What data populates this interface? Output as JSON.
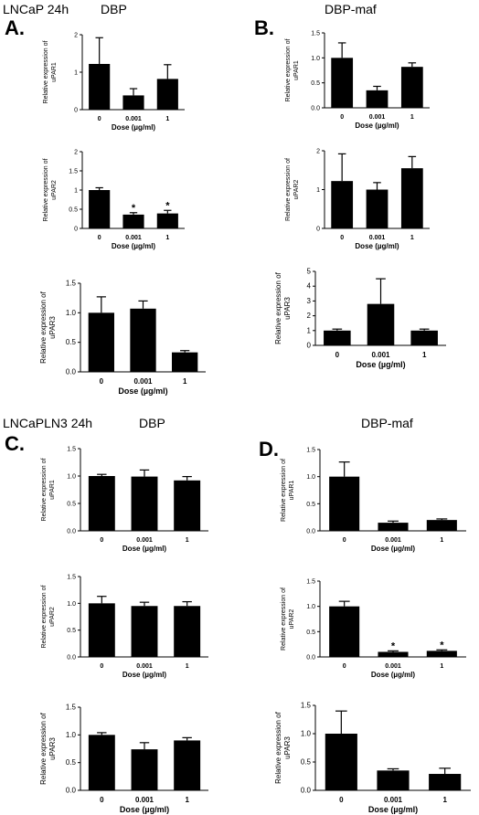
{
  "headers": {
    "top_left_cell": "LNCaP 24h",
    "top_left_treatment": "DBP",
    "top_right_treatment": "DBP-maf",
    "bottom_left_cell": "LNCaPLN3 24h",
    "bottom_left_treatment": "DBP",
    "bottom_right_treatment": "DBP-maf"
  },
  "panel_labels": {
    "a": "A.",
    "b": "B.",
    "c": "C.",
    "d": "D."
  },
  "chart_data": [
    {
      "type": "bar",
      "panel": "A",
      "categories": [
        "0",
        "0.001",
        "1"
      ],
      "values": [
        1.22,
        0.38,
        0.82
      ],
      "errors": [
        0.7,
        0.18,
        0.38
      ],
      "ylim": [
        0,
        2
      ],
      "yticks": [
        "0",
        "1",
        "2"
      ],
      "ylabel": [
        "Relative expression of",
        "uPAR1"
      ],
      "xlabel": "Dose (µg/ml)",
      "significance": [
        "",
        "",
        ""
      ]
    },
    {
      "type": "bar",
      "panel": "A",
      "categories": [
        "0",
        "0.001",
        "1"
      ],
      "values": [
        1.0,
        0.36,
        0.39
      ],
      "errors": [
        0.06,
        0.05,
        0.08
      ],
      "ylim": [
        0,
        2
      ],
      "yticks": [
        "0",
        "0.5",
        "1",
        "1.5",
        "2"
      ],
      "ylabel": [
        "Relative expression of",
        "uPAR2"
      ],
      "xlabel": "Dose (µg/ml)",
      "significance": [
        "",
        "*",
        "*"
      ]
    },
    {
      "type": "bar",
      "panel": "A",
      "categories": [
        "0",
        "0.001",
        "1"
      ],
      "values": [
        1.0,
        1.07,
        0.33
      ],
      "errors": [
        0.27,
        0.13,
        0.03
      ],
      "ylim": [
        0,
        1.5
      ],
      "yticks": [
        "0.0",
        "0.5",
        "1.0",
        "1.5"
      ],
      "ylabel": [
        "Relative expression of",
        "uPAR3"
      ],
      "xlabel": "Dose (µg/ml)",
      "significance": [
        "",
        "",
        ""
      ]
    },
    {
      "type": "bar",
      "panel": "B",
      "categories": [
        "0",
        "0.001",
        "1"
      ],
      "values": [
        1.0,
        0.35,
        0.82
      ],
      "errors": [
        0.3,
        0.08,
        0.08
      ],
      "ylim": [
        0,
        1.5
      ],
      "yticks": [
        "0.0",
        "0.5",
        "1.0",
        "1.5"
      ],
      "ylabel": [
        "Relative expression of",
        "uPAR1"
      ],
      "xlabel": "Dose (µg/ml)",
      "significance": [
        "",
        "",
        ""
      ]
    },
    {
      "type": "bar",
      "panel": "B",
      "categories": [
        "0",
        "0.001",
        "1"
      ],
      "values": [
        1.22,
        1.0,
        1.55
      ],
      "errors": [
        0.7,
        0.18,
        0.3
      ],
      "ylim": [
        0,
        2
      ],
      "yticks": [
        "0",
        "1",
        "2"
      ],
      "ylabel": [
        "Relative expression of",
        "uPAR2"
      ],
      "xlabel": "Dose (µg/ml)",
      "significance": [
        "",
        "",
        ""
      ]
    },
    {
      "type": "bar",
      "panel": "B",
      "categories": [
        "0",
        "0.001",
        "1"
      ],
      "values": [
        1.0,
        2.8,
        1.0
      ],
      "errors": [
        0.1,
        1.7,
        0.1
      ],
      "ylim": [
        0,
        5
      ],
      "yticks": [
        "0",
        "1",
        "2",
        "3",
        "4",
        "5"
      ],
      "ylabel": [
        "Relative expression of",
        "uPAR3"
      ],
      "xlabel": "Dose (µg/ml)",
      "significance": [
        "",
        "",
        ""
      ]
    },
    {
      "type": "bar",
      "panel": "C",
      "categories": [
        "0",
        "0.001",
        "1"
      ],
      "values": [
        1.0,
        0.99,
        0.92
      ],
      "errors": [
        0.03,
        0.12,
        0.07
      ],
      "ylim": [
        0,
        1.5
      ],
      "yticks": [
        "0.0",
        "0.5",
        "1.0",
        "1.5"
      ],
      "ylabel": [
        "Relative expression of",
        "uPAR1"
      ],
      "xlabel": "Dose (µg/ml)",
      "significance": [
        "",
        "",
        ""
      ]
    },
    {
      "type": "bar",
      "panel": "C",
      "categories": [
        "0",
        "0.001",
        "1"
      ],
      "values": [
        1.0,
        0.95,
        0.95
      ],
      "errors": [
        0.13,
        0.07,
        0.08
      ],
      "ylim": [
        0,
        1.5
      ],
      "yticks": [
        "0.0",
        "0.5",
        "1.0",
        "1.5"
      ],
      "ylabel": [
        "Relative expression of",
        "uPAR2"
      ],
      "xlabel": "Dose (µg/ml)",
      "significance": [
        "",
        "",
        ""
      ]
    },
    {
      "type": "bar",
      "panel": "C",
      "categories": [
        "0",
        "0.001",
        "1"
      ],
      "values": [
        1.0,
        0.74,
        0.9
      ],
      "errors": [
        0.04,
        0.12,
        0.05
      ],
      "ylim": [
        0,
        1.5
      ],
      "yticks": [
        "0.0",
        "0.5",
        "1.0",
        "1.5"
      ],
      "ylabel": [
        "Relative expression of",
        "uPAR3"
      ],
      "xlabel": "Dose (µg/ml)",
      "significance": [
        "",
        "",
        ""
      ]
    },
    {
      "type": "bar",
      "panel": "D",
      "categories": [
        "0",
        "0.001",
        "1"
      ],
      "values": [
        1.0,
        0.15,
        0.2
      ],
      "errors": [
        0.27,
        0.03,
        0.02
      ],
      "ylim": [
        0,
        1.5
      ],
      "yticks": [
        "0.0",
        "0.5",
        "1.0",
        "1.5"
      ],
      "ylabel": [
        "Relative expression of",
        "uPAR1"
      ],
      "xlabel": "Dose (µg/ml)",
      "significance": [
        "",
        "",
        ""
      ]
    },
    {
      "type": "bar",
      "panel": "D",
      "categories": [
        "0",
        "0.001",
        "1"
      ],
      "values": [
        1.0,
        0.1,
        0.12
      ],
      "errors": [
        0.1,
        0.02,
        0.02
      ],
      "ylim": [
        0,
        1.5
      ],
      "yticks": [
        "0.0",
        "0.5",
        "1.0",
        "1.5"
      ],
      "ylabel": [
        "Relative expression of",
        "uPAR2"
      ],
      "xlabel": "Dose (µg/ml)",
      "significance": [
        "",
        "*",
        "*"
      ]
    },
    {
      "type": "bar",
      "panel": "D",
      "categories": [
        "0",
        "0.001",
        "1"
      ],
      "values": [
        1.0,
        0.35,
        0.29
      ],
      "errors": [
        0.4,
        0.03,
        0.1
      ],
      "ylim": [
        0,
        1.5
      ],
      "yticks": [
        "0.0",
        "0.5",
        "1.0",
        "1.5"
      ],
      "ylabel": [
        "Relative expression of",
        "uPAR3"
      ],
      "xlabel": "Dose (µg/ml)",
      "significance": [
        "",
        "",
        ""
      ]
    }
  ]
}
